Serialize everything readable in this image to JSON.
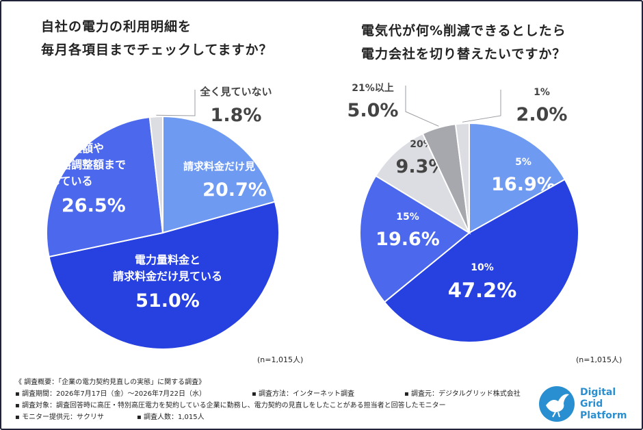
{
  "chart_data": [
    {
      "type": "pie",
      "title_lines": [
        "自社の電力の利用明細を",
        "毎月各項目までチェックしてますか？"
      ],
      "slices": [
        {
          "label_lines": [
            "請求料金だけ見ている"
          ],
          "value": 20.7,
          "value_label": "20.7%",
          "color": "#6f9af2",
          "text_color": "#ffffff"
        },
        {
          "label_lines": [
            "電力量料金と",
            "請求料金だけ見ている"
          ],
          "value": 51.0,
          "value_label": "51.0%",
          "color": "#2740e0",
          "text_color": "#ffffff"
        },
        {
          "label_lines": [
            "燃料費調整額や",
            "市場価格調整額まで",
            "確認している"
          ],
          "value": 26.5,
          "value_label": "26.5%",
          "color": "#4c68ec",
          "text_color": "#ffffff"
        },
        {
          "label_lines": [
            "全く見ていない"
          ],
          "value": 1.8,
          "value_label": "1.8%",
          "color": "#dcdde3",
          "text_color": "#444444"
        }
      ],
      "note": "(n=1,015人)"
    },
    {
      "type": "pie",
      "title_lines": [
        "電気代が何%削減できるとしたら",
        "電力会社を切り替えたいですか？"
      ],
      "slices": [
        {
          "label_lines": [
            "5%"
          ],
          "value": 16.9,
          "value_label": "16.9%",
          "color": "#6f9af2",
          "text_color": "#ffffff"
        },
        {
          "label_lines": [
            "10%"
          ],
          "value": 47.2,
          "value_label": "47.2%",
          "color": "#2740e0",
          "text_color": "#ffffff"
        },
        {
          "label_lines": [
            "15%"
          ],
          "value": 19.6,
          "value_label": "19.6%",
          "color": "#4c68ec",
          "text_color": "#ffffff"
        },
        {
          "label_lines": [
            "20%"
          ],
          "value": 9.3,
          "value_label": "9.3%",
          "color": "#dcdde3",
          "text_color": "#444444"
        },
        {
          "label_lines": [
            "21%以上"
          ],
          "value": 5.0,
          "value_label": "5.0%",
          "color": "#a7a8ad",
          "text_color": "#444444"
        },
        {
          "label_lines": [
            "1%"
          ],
          "value": 2.0,
          "value_label": "2.0%",
          "color": "#dcdde3",
          "text_color": "#444444"
        }
      ],
      "note": "(n=1,015人)"
    }
  ],
  "footer": {
    "heading": "《 調査概要：「企業の電力契約見直しの実態」に関する調査》",
    "period": "▪ 調査期間：2026年7月17日（金）〜2026年7月22日（水）",
    "method": "▪ 調査方法：インターネット調査",
    "source": "▪ 調査元：デジタルグリッド株式会社",
    "target": "▪ 調査対象：調査回答時に高圧・特別高圧電力を契約している企業に勤務し、電力契約の見直しをしたことがある担当者と回答したモニター",
    "provider": "▪ モニター提供元：サクリサ",
    "count": "▪ 調査人数：1,015人"
  },
  "logo": {
    "lines": [
      "Digital",
      "Grid",
      "Platform"
    ],
    "color": "#2a8fd1"
  }
}
